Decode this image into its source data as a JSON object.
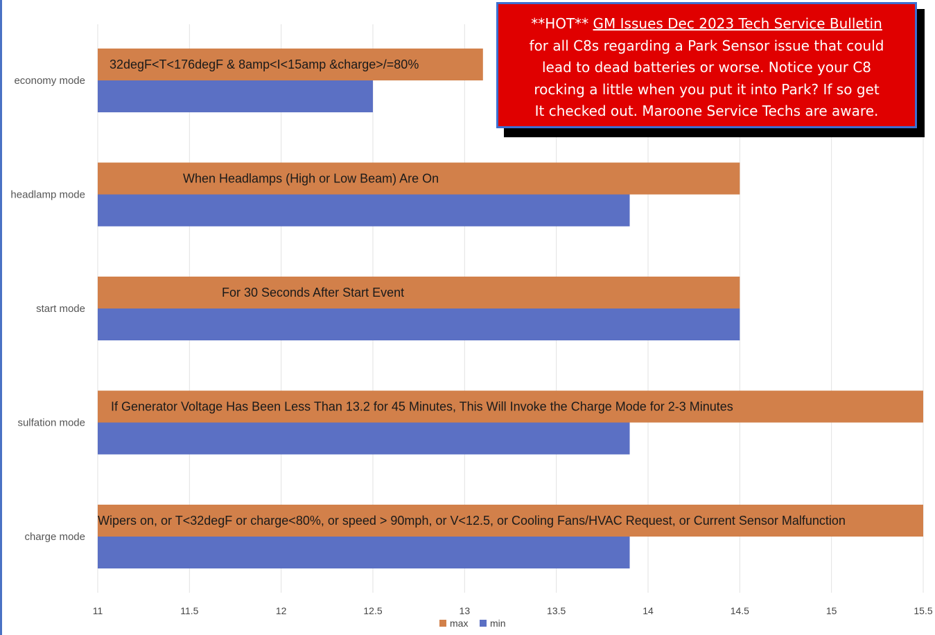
{
  "chart_data": {
    "type": "bar",
    "orientation": "horizontal",
    "categories": [
      "economy mode",
      "headlamp mode",
      "start mode",
      "sulfation mode",
      "charge mode"
    ],
    "series": [
      {
        "name": "max",
        "color": "#d2804a",
        "values": [
          13.1,
          14.5,
          14.5,
          15.5,
          15.5
        ]
      },
      {
        "name": "min",
        "color": "#5b70c4",
        "values": [
          12.5,
          13.9,
          14.5,
          13.9,
          13.9
        ]
      }
    ],
    "bar_annotations": [
      "32degF<T<176degF & 8amp<I<15amp &charge>/=80%",
      "When Headlamps (High or Low Beam) Are On",
      "For 30 Seconds After Start Event",
      "If  Generator Voltage Has Been Less Than 13.2 for 45 Minutes, This Will Invoke the Charge Mode for 2-3 Minutes",
      "Wipers on, or T<32degF or charge<80%, or speed > 90mph, or V<12.5, or  Cooling Fans/HVAC Request, or Current Sensor Malfunction"
    ],
    "xlim": [
      11,
      15.5
    ],
    "xticks": [
      "11",
      "11.5",
      "12",
      "12.5",
      "13",
      "13.5",
      "14",
      "14.5",
      "15",
      "15.5"
    ],
    "grid": true,
    "legend_position": "bottom"
  },
  "notice": {
    "prefix": "**HOT** ",
    "headline": "GM Issues Dec 2023 Tech Service Bulletin ",
    "line2": "for all C8s regarding a Park Sensor issue that could",
    "line3": "lead to dead batteries or worse. Notice your C8",
    "line4": "rocking a little when you put it into Park? If so get",
    "line5": "It checked out.  Maroone Service Techs are aware.",
    "background": "#e00000",
    "border_color": "#3d6fd1"
  }
}
